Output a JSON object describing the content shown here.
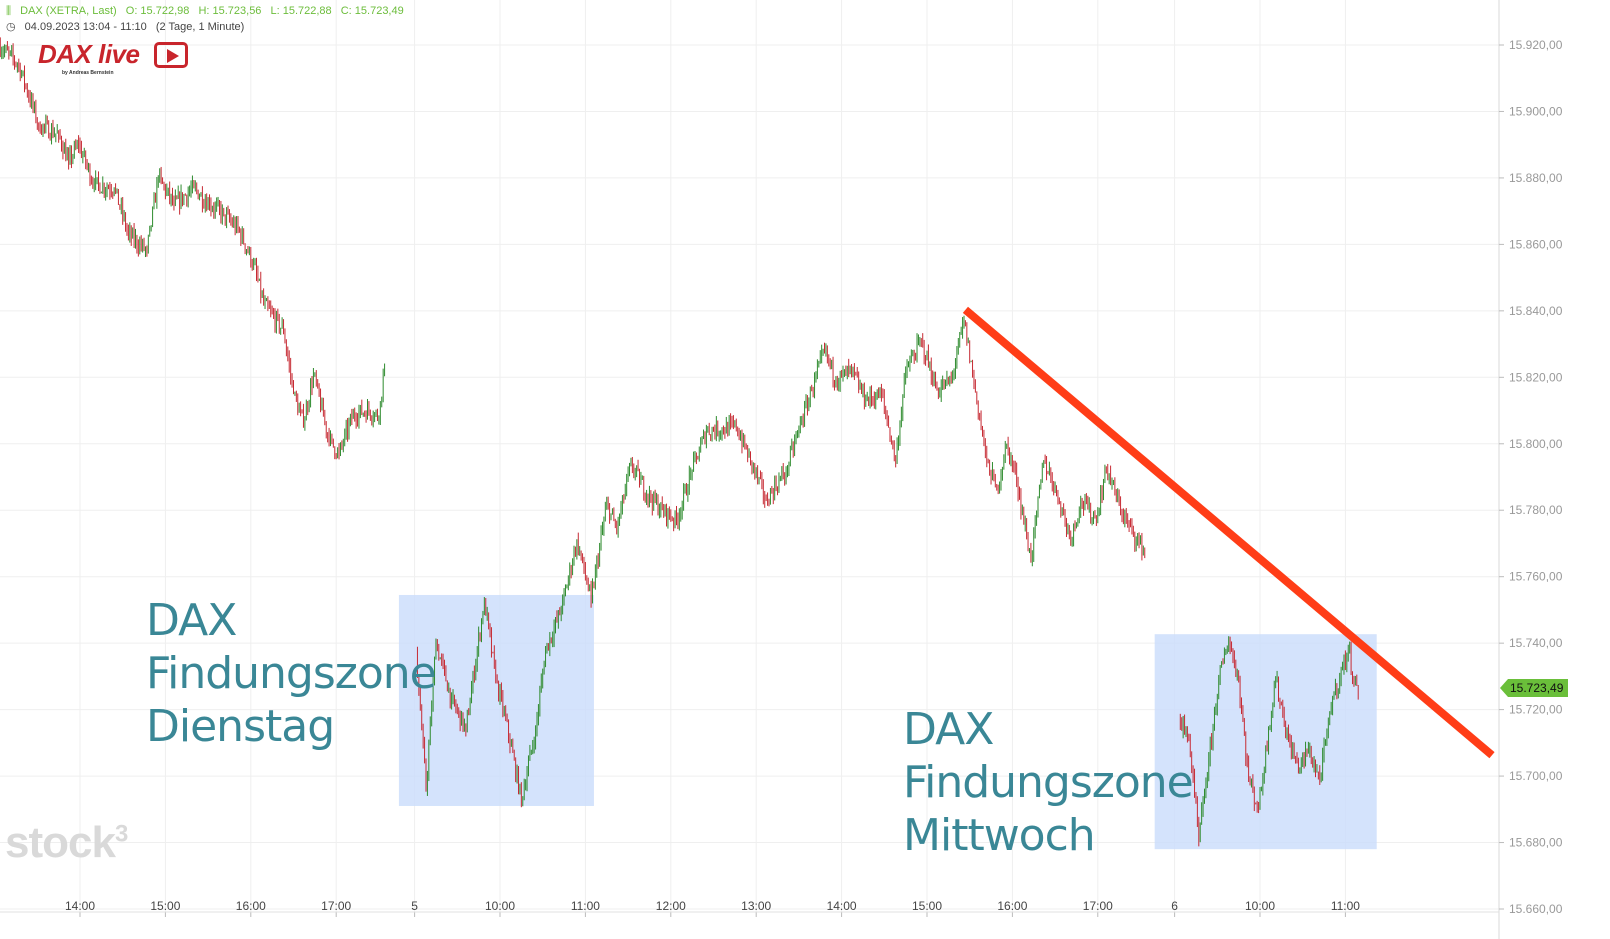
{
  "header": {
    "instrument": "DAX (XETRA, Last)",
    "open": "O: 15.722,98",
    "high": "H: 15.723,56",
    "low": "L: 15.722,88",
    "close": "C: 15.723,49",
    "range": "04.09.2023 13:04 - 11:10",
    "interval": "(2 Tage, 1 Minute)"
  },
  "logo": {
    "title": "DAX live",
    "subtitle": "by Andreas Bernstein"
  },
  "watermark": "stock3",
  "last_price_label": "15.723,49",
  "annotations": {
    "zone1": [
      "DAX",
      "Findungszone",
      "Dienstag"
    ],
    "zone2": [
      "DAX",
      "Findungszone",
      "Mittwoch"
    ]
  },
  "colors": {
    "up": "#2e8b2e",
    "down": "#c62a33",
    "trendline": "#ff3d17",
    "zone": "#c9dcfb",
    "label": "#3a8796",
    "badge": "#6abf3a"
  },
  "chart_data": {
    "type": "candlestick",
    "title": "DAX (XETRA, Last)",
    "interval": "1 Minute",
    "ylim": [
      15660,
      15925
    ],
    "yticks": [
      15660,
      15680,
      15700,
      15720,
      15740,
      15760,
      15780,
      15800,
      15820,
      15840,
      15860,
      15880,
      15900,
      15920
    ],
    "ytick_labels": [
      "15.660,00",
      "15.680,00",
      "15.700,00",
      "15.720,00",
      "15.740,00",
      "15.760,00",
      "15.780,00",
      "15.800,00",
      "15.820,00",
      "15.840,00",
      "15.860,00",
      "15.880,00",
      "15.900,00",
      "15.920,00"
    ],
    "xticks": [
      {
        "day": 1,
        "t": "14:00",
        "label": "14:00"
      },
      {
        "day": 1,
        "t": "15:00",
        "label": "15:00"
      },
      {
        "day": 1,
        "t": "16:00",
        "label": "16:00"
      },
      {
        "day": 1,
        "t": "17:00",
        "label": "17:00"
      },
      {
        "day": 2,
        "t": "09:00",
        "label": "5"
      },
      {
        "day": 2,
        "t": "10:00",
        "label": "10:00"
      },
      {
        "day": 2,
        "t": "11:00",
        "label": "11:00"
      },
      {
        "day": 2,
        "t": "12:00",
        "label": "12:00"
      },
      {
        "day": 2,
        "t": "13:00",
        "label": "13:00"
      },
      {
        "day": 2,
        "t": "14:00",
        "label": "14:00"
      },
      {
        "day": 2,
        "t": "15:00",
        "label": "15:00"
      },
      {
        "day": 2,
        "t": "16:00",
        "label": "16:00"
      },
      {
        "day": 2,
        "t": "17:00",
        "label": "17:00"
      },
      {
        "day": 3,
        "t": "09:00",
        "label": "6"
      },
      {
        "day": 3,
        "t": "10:00",
        "label": "10:00"
      },
      {
        "day": 3,
        "t": "11:00",
        "label": "11:00"
      }
    ],
    "grid": true,
    "price_path": [
      [
        1,
        "13:04",
        15920
      ],
      [
        1,
        "13:18",
        15914
      ],
      [
        1,
        "13:32",
        15896
      ],
      [
        1,
        "13:46",
        15893
      ],
      [
        1,
        "13:53",
        15885
      ],
      [
        1,
        "14:00",
        15890
      ],
      [
        1,
        "14:11",
        15878
      ],
      [
        1,
        "14:25",
        15877
      ],
      [
        1,
        "14:35",
        15863
      ],
      [
        1,
        "14:48",
        15858
      ],
      [
        1,
        "14:56",
        15880
      ],
      [
        1,
        "15:07",
        15872
      ],
      [
        1,
        "15:21",
        15877
      ],
      [
        1,
        "15:32",
        15872
      ],
      [
        1,
        "15:42",
        15869
      ],
      [
        1,
        "15:53",
        15864
      ],
      [
        1,
        "16:03",
        15854
      ],
      [
        1,
        "16:10",
        15842
      ],
      [
        1,
        "16:24",
        15834
      ],
      [
        1,
        "16:31",
        15815
      ],
      [
        1,
        "16:38",
        15806
      ],
      [
        1,
        "16:45",
        15821
      ],
      [
        1,
        "16:56",
        15801
      ],
      [
        1,
        "17:03",
        15797
      ],
      [
        1,
        "17:13",
        15809
      ],
      [
        1,
        "17:24",
        15810
      ],
      [
        1,
        "17:31",
        15808
      ],
      [
        1,
        "17:35",
        15824
      ],
      [
        2,
        "09:02",
        15738
      ],
      [
        2,
        "09:09",
        15696
      ],
      [
        2,
        "09:16",
        15740
      ],
      [
        2,
        "09:27",
        15723
      ],
      [
        2,
        "09:37",
        15714
      ],
      [
        2,
        "09:50",
        15753
      ],
      [
        2,
        "09:58",
        15729
      ],
      [
        2,
        "10:05",
        15717
      ],
      [
        2,
        "10:16",
        15693
      ],
      [
        2,
        "10:26",
        15714
      ],
      [
        2,
        "10:33",
        15738
      ],
      [
        2,
        "10:44",
        15750
      ],
      [
        2,
        "10:55",
        15771
      ],
      [
        2,
        "11:05",
        15753
      ],
      [
        2,
        "11:16",
        15782
      ],
      [
        2,
        "11:23",
        15774
      ],
      [
        2,
        "11:33",
        15794
      ],
      [
        2,
        "11:44",
        15785
      ],
      [
        2,
        "11:55",
        15780
      ],
      [
        2,
        "12:05",
        15777
      ],
      [
        2,
        "12:16",
        15792
      ],
      [
        2,
        "12:26",
        15804
      ],
      [
        2,
        "12:47",
        15805
      ],
      [
        2,
        "12:57",
        15795
      ],
      [
        2,
        "13:08",
        15783
      ],
      [
        2,
        "13:22",
        15792
      ],
      [
        2,
        "13:33",
        15807
      ],
      [
        2,
        "13:40",
        15816
      ],
      [
        2,
        "13:49",
        15828
      ],
      [
        2,
        "13:57",
        15819
      ],
      [
        2,
        "14:08",
        15822
      ],
      [
        2,
        "14:18",
        15813
      ],
      [
        2,
        "14:29",
        15815
      ],
      [
        2,
        "14:39",
        15795
      ],
      [
        2,
        "14:46",
        15822
      ],
      [
        2,
        "14:57",
        15831
      ],
      [
        2,
        "15:08",
        15816
      ],
      [
        2,
        "15:18",
        15819
      ],
      [
        2,
        "15:27",
        15837
      ],
      [
        2,
        "15:36",
        15813
      ],
      [
        2,
        "15:43",
        15795
      ],
      [
        2,
        "15:50",
        15786
      ],
      [
        2,
        "15:57",
        15800
      ],
      [
        2,
        "16:04",
        15789
      ],
      [
        2,
        "16:14",
        15765
      ],
      [
        2,
        "16:23",
        15795
      ],
      [
        2,
        "16:32",
        15786
      ],
      [
        2,
        "16:42",
        15771
      ],
      [
        2,
        "16:49",
        15783
      ],
      [
        2,
        "17:00",
        15777
      ],
      [
        2,
        "17:07",
        15793
      ],
      [
        2,
        "17:17",
        15780
      ],
      [
        2,
        "17:28",
        15771
      ],
      [
        2,
        "17:34",
        15768
      ],
      [
        3,
        "09:04",
        15717
      ],
      [
        3,
        "09:11",
        15711
      ],
      [
        3,
        "09:18",
        15681
      ],
      [
        3,
        "09:25",
        15705
      ],
      [
        3,
        "09:32",
        15729
      ],
      [
        3,
        "09:39",
        15741
      ],
      [
        3,
        "09:46",
        15729
      ],
      [
        3,
        "09:53",
        15699
      ],
      [
        3,
        "10:00",
        15690
      ],
      [
        3,
        "10:07",
        15714
      ],
      [
        3,
        "10:12",
        15729
      ],
      [
        3,
        "10:21",
        15711
      ],
      [
        3,
        "10:28",
        15702
      ],
      [
        3,
        "10:35",
        15708
      ],
      [
        3,
        "10:43",
        15699
      ],
      [
        3,
        "10:52",
        15723
      ],
      [
        3,
        "11:03",
        15738
      ],
      [
        3,
        "11:10",
        15723.49
      ]
    ],
    "zones": [
      {
        "day": 2,
        "from": "08:49",
        "to": "11:06",
        "low": 15691,
        "high": 15754.5
      },
      {
        "day": 3,
        "from": "08:46",
        "to": "11:22",
        "low": 15678,
        "high": 15742.7
      }
    ],
    "trendline": {
      "from": {
        "day": 2,
        "t": "15:27",
        "price": 15840.3
      },
      "to": {
        "day": 3,
        "t": "12:43",
        "price": 15706.3
      }
    },
    "last_price": 15723.49
  }
}
